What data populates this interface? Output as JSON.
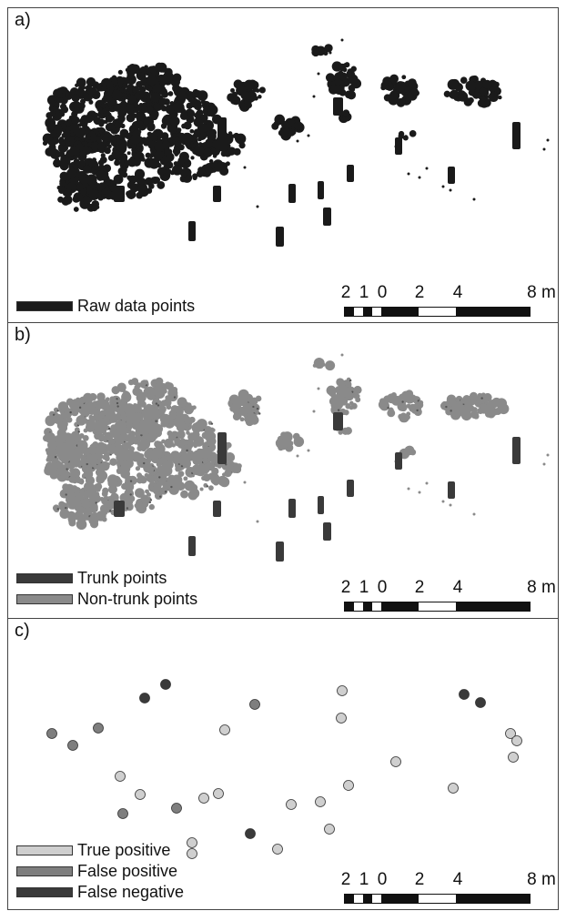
{
  "panels": {
    "a": {
      "label": "a)",
      "legend": [
        {
          "text": "Raw data points",
          "color": "#1a1a1a"
        }
      ]
    },
    "b": {
      "label": "b)",
      "legend": [
        {
          "text": "Trunk points",
          "color": "#3a3a3a"
        },
        {
          "text": "Non-trunk points",
          "color": "#8a8a8a"
        }
      ]
    },
    "c": {
      "label": "c)",
      "legend": [
        {
          "text": "True positive",
          "color": "#cfcfcf"
        },
        {
          "text": "False positive",
          "color": "#7e7e7e"
        },
        {
          "text": "False negative",
          "color": "#3a3a3a"
        }
      ]
    }
  },
  "scale_bar": {
    "ticks": [
      "2",
      "1",
      "0",
      "2",
      "4",
      "8 m"
    ]
  },
  "colors": {
    "raw": "#1a1a1a",
    "trunk": "#3a3a3a",
    "non_trunk": "#8a8a8a",
    "true_positive": "#cfcfcf",
    "false_positive": "#7e7e7e",
    "false_negative": "#3a3a3a"
  }
}
